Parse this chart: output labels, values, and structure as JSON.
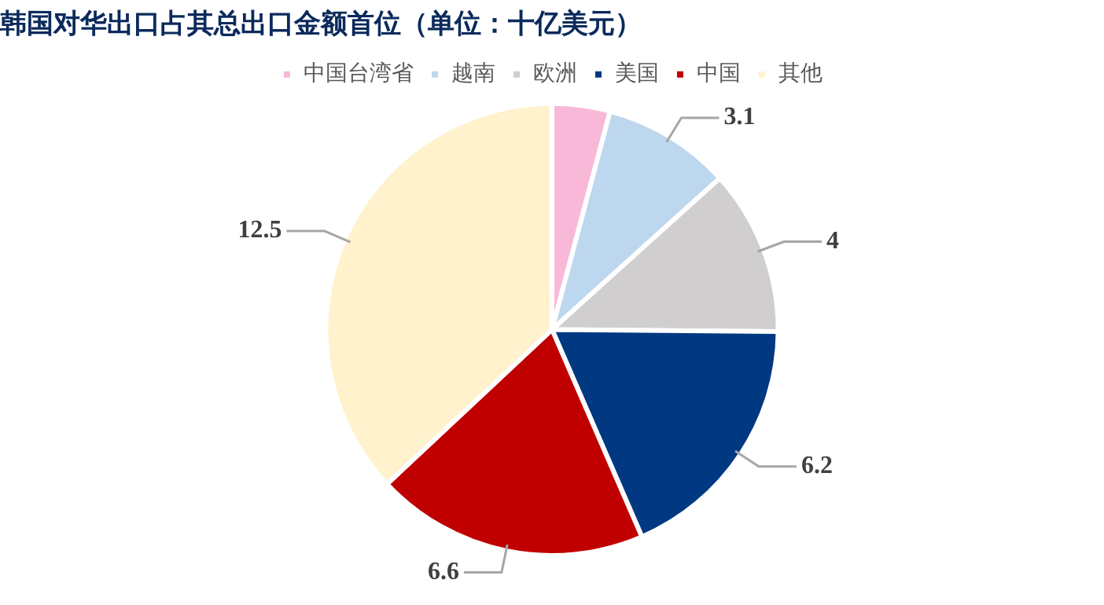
{
  "chart_data": {
    "type": "pie",
    "title": "韩国对华出口占其总出口金额首位（单位：十亿美元）",
    "categories": [
      "中国台湾省",
      "越南",
      "欧洲",
      "美国",
      "中国",
      "其他"
    ],
    "values": [
      1.4,
      3.1,
      4,
      6.2,
      6.6,
      12.5
    ],
    "value_labels": [
      null,
      "3.1",
      "4",
      "6.2",
      "6.6",
      "12.5"
    ],
    "colors": [
      "#f8b9d8",
      "#bdd7ee",
      "#d0cece",
      "#003882",
      "#c00000",
      "#fff2cc"
    ],
    "legend": "top"
  }
}
